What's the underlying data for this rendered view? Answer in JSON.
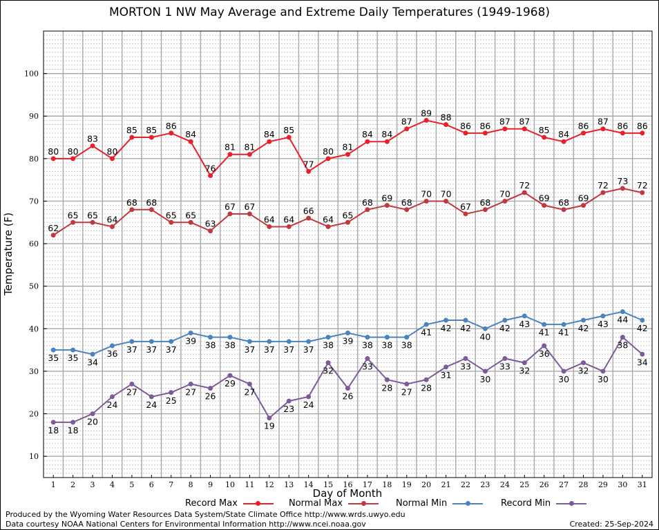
{
  "chart_data": {
    "type": "line",
    "title": "MORTON 1 NW May Average and Extreme Daily Temperatures (1949-1968)",
    "xlabel": "Day of Month",
    "ylabel": "Temperature (F)",
    "ylim": [
      5,
      110
    ],
    "yticks": [
      10,
      20,
      30,
      40,
      50,
      60,
      70,
      80,
      90,
      100
    ],
    "grid": true,
    "legend_position": "bottom",
    "x": [
      1,
      2,
      3,
      4,
      5,
      6,
      7,
      8,
      9,
      10,
      11,
      12,
      13,
      14,
      15,
      16,
      17,
      18,
      19,
      20,
      21,
      22,
      23,
      24,
      25,
      26,
      27,
      28,
      29,
      30,
      31
    ],
    "series": [
      {
        "name": "Record Max",
        "color": "#e8202a",
        "label_position": "above",
        "values": [
          80,
          80,
          83,
          80,
          85,
          85,
          86,
          84,
          76,
          81,
          81,
          84,
          85,
          77,
          80,
          81,
          84,
          84,
          87,
          89,
          88,
          86,
          86,
          87,
          87,
          85,
          84,
          86,
          87,
          86,
          86
        ]
      },
      {
        "name": "Normal Max",
        "color": "#c0393f",
        "label_position": "above",
        "values": [
          62,
          65,
          65,
          64,
          68,
          68,
          65,
          65,
          63,
          67,
          67,
          64,
          64,
          66,
          64,
          65,
          68,
          69,
          68,
          70,
          70,
          67,
          68,
          70,
          72,
          69,
          68,
          69,
          72,
          73,
          72
        ]
      },
      {
        "name": "Normal Min",
        "color": "#4a83bd",
        "label_position": "below",
        "values": [
          35,
          35,
          34,
          36,
          37,
          37,
          37,
          39,
          38,
          38,
          37,
          37,
          37,
          37,
          38,
          39,
          38,
          38,
          38,
          41,
          42,
          42,
          40,
          42,
          43,
          41,
          41,
          42,
          43,
          44,
          42
        ]
      },
      {
        "name": "Record Min",
        "color": "#7d5a98",
        "label_position": "below",
        "values": [
          18,
          18,
          20,
          24,
          27,
          24,
          25,
          27,
          26,
          29,
          27,
          19,
          23,
          24,
          32,
          26,
          33,
          28,
          27,
          28,
          31,
          33,
          30,
          33,
          32,
          36,
          30,
          32,
          30,
          38,
          34
        ]
      }
    ]
  },
  "footer": {
    "credit_line1": "Produced by the Wyoming Water Resources Data System/State Climate Office http://www.wrds.uwyo.edu",
    "credit_line2": "Data courtesy NOAA National Centers for Environmental Information http://www.ncei.noaa.gov",
    "created": "Created: 25-Sep-2024"
  }
}
